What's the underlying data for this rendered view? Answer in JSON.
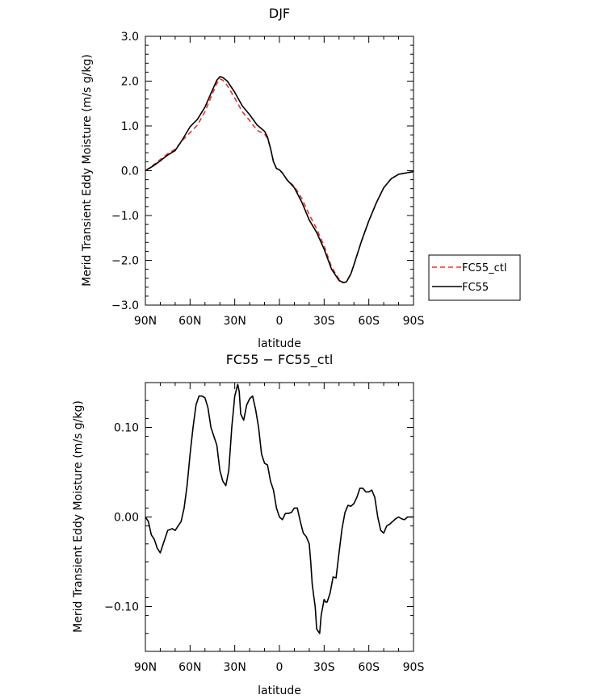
{
  "chart_data": [
    {
      "type": "line",
      "title": "DJF",
      "xlabel": "latitude",
      "ylabel": "Merid Transient Eddy Moisture (m/s g/kg)",
      "xlim": [
        90,
        -90
      ],
      "ylim": [
        -3.0,
        3.0
      ],
      "x_ticks": [
        {
          "value": 90,
          "label": "90N"
        },
        {
          "value": 60,
          "label": "60N"
        },
        {
          "value": 30,
          "label": "30N"
        },
        {
          "value": 0,
          "label": "0"
        },
        {
          "value": -30,
          "label": "30S"
        },
        {
          "value": -60,
          "label": "60S"
        },
        {
          "value": -90,
          "label": "90S"
        }
      ],
      "y_ticks": [
        {
          "value": 3.0,
          "label": "3.0"
        },
        {
          "value": 2.0,
          "label": "2.0"
        },
        {
          "value": 1.0,
          "label": "1.0"
        },
        {
          "value": 0.0,
          "label": "0.0"
        },
        {
          "value": -1.0,
          "label": "−1.0"
        },
        {
          "value": -2.0,
          "label": "−2.0"
        },
        {
          "value": -3.0,
          "label": "−3.0"
        }
      ],
      "legend": {
        "placement": "right",
        "entries": [
          {
            "label": "FC55_ctl",
            "color": "#e8312f",
            "dash": "dashed"
          },
          {
            "label": "FC55",
            "color": "#000000",
            "dash": "solid"
          }
        ]
      },
      "series": [
        {
          "name": "FC55",
          "color": "#000000",
          "style": "solid",
          "x": [
            90,
            85,
            80,
            75,
            70,
            65,
            60,
            55,
            50,
            45,
            42,
            40,
            38,
            35,
            30,
            25,
            20,
            15,
            10,
            8,
            6,
            4,
            2,
            0,
            -2,
            -5,
            -10,
            -15,
            -20,
            -25,
            -30,
            -35,
            -40,
            -43,
            -45,
            -48,
            -50,
            -55,
            -60,
            -65,
            -70,
            -75,
            -80,
            -85,
            -90
          ],
          "y": [
            0.0,
            0.1,
            0.22,
            0.35,
            0.45,
            0.7,
            0.98,
            1.15,
            1.42,
            1.8,
            2.02,
            2.1,
            2.08,
            2.0,
            1.75,
            1.45,
            1.25,
            1.02,
            0.88,
            0.75,
            0.5,
            0.2,
            0.05,
            0.02,
            -0.05,
            -0.2,
            -0.38,
            -0.7,
            -1.1,
            -1.38,
            -1.75,
            -2.2,
            -2.45,
            -2.5,
            -2.48,
            -2.3,
            -2.1,
            -1.58,
            -1.12,
            -0.72,
            -0.38,
            -0.18,
            -0.08,
            -0.05,
            -0.02
          ]
        },
        {
          "name": "FC55_ctl",
          "color": "#e8312f",
          "style": "dashed",
          "x": [
            90,
            85,
            80,
            75,
            70,
            65,
            60,
            55,
            50,
            45,
            42,
            40,
            38,
            35,
            30,
            25,
            20,
            15,
            10,
            8,
            6,
            4,
            2,
            0,
            -2,
            -5,
            -10,
            -15,
            -20,
            -25,
            -30,
            -35,
            -40,
            -43,
            -45,
            -48,
            -50,
            -55,
            -60,
            -65,
            -70,
            -75,
            -80,
            -85,
            -90
          ],
          "y": [
            0.0,
            0.12,
            0.25,
            0.38,
            0.48,
            0.68,
            0.85,
            1.02,
            1.32,
            1.72,
            1.95,
            2.05,
            2.02,
            1.9,
            1.62,
            1.32,
            1.12,
            0.9,
            0.82,
            0.72,
            0.5,
            0.2,
            0.05,
            0.02,
            -0.05,
            -0.2,
            -0.35,
            -0.62,
            -0.98,
            -1.3,
            -1.68,
            -2.15,
            -2.42,
            -2.5,
            -2.48,
            -2.3,
            -2.1,
            -1.58,
            -1.12,
            -0.72,
            -0.38,
            -0.18,
            -0.08,
            -0.05,
            -0.02
          ]
        }
      ]
    },
    {
      "type": "line",
      "title": "FC55 − FC55_ctl",
      "xlabel": "latitude",
      "ylabel": "Merid Transient Eddy Moisture (m/s g/kg)",
      "xlim": [
        90,
        -90
      ],
      "ylim": [
        -0.15,
        0.15
      ],
      "x_ticks": [
        {
          "value": 90,
          "label": "90N"
        },
        {
          "value": 60,
          "label": "60N"
        },
        {
          "value": 30,
          "label": "30N"
        },
        {
          "value": 0,
          "label": "0"
        },
        {
          "value": -30,
          "label": "30S"
        },
        {
          "value": -60,
          "label": "60S"
        },
        {
          "value": -90,
          "label": "90S"
        }
      ],
      "y_ticks": [
        {
          "value": 0.1,
          "label": "0.10"
        },
        {
          "value": 0.0,
          "label": "0.00"
        },
        {
          "value": -0.1,
          "label": "−0.10"
        }
      ],
      "series": [
        {
          "color": "#000000",
          "style": "solid",
          "x": [
            90,
            88,
            86,
            84,
            82,
            80,
            78,
            75,
            72,
            70,
            68,
            66,
            64,
            62,
            60,
            58,
            56,
            54,
            52,
            50,
            48,
            46,
            44,
            42,
            40,
            38,
            36,
            34,
            32,
            30,
            28,
            27,
            26,
            24,
            22,
            20,
            18,
            16,
            14,
            12,
            10,
            8,
            6,
            4,
            2,
            0,
            -2,
            -4,
            -6,
            -8,
            -10,
            -12,
            -14,
            -16,
            -18,
            -20,
            -21,
            -22,
            -23,
            -24,
            -25,
            -27,
            -28,
            -30,
            -31,
            -32,
            -34,
            -36,
            -38,
            -40,
            -42,
            -44,
            -46,
            -48,
            -50,
            -52,
            -54,
            -56,
            -58,
            -60,
            -62,
            -64,
            -66,
            -68,
            -70,
            -72,
            -74,
            -76,
            -78,
            -80,
            -82,
            -84,
            -86,
            -88,
            -90
          ],
          "y": [
            0.0,
            -0.005,
            -0.02,
            -0.025,
            -0.035,
            -0.04,
            -0.03,
            -0.015,
            -0.013,
            -0.015,
            -0.01,
            -0.005,
            0.01,
            0.035,
            0.07,
            0.1,
            0.125,
            0.135,
            0.135,
            0.133,
            0.122,
            0.1,
            0.09,
            0.08,
            0.052,
            0.04,
            0.035,
            0.052,
            0.1,
            0.135,
            0.148,
            0.14,
            0.115,
            0.108,
            0.125,
            0.132,
            0.135,
            0.12,
            0.1,
            0.07,
            0.06,
            0.058,
            0.04,
            0.03,
            0.01,
            0.0,
            -0.003,
            0.004,
            0.004,
            0.005,
            0.01,
            0.01,
            -0.005,
            -0.018,
            -0.022,
            -0.03,
            -0.05,
            -0.075,
            -0.088,
            -0.1,
            -0.125,
            -0.13,
            -0.11,
            -0.092,
            -0.095,
            -0.095,
            -0.085,
            -0.067,
            -0.068,
            -0.04,
            -0.013,
            0.005,
            0.013,
            0.012,
            0.015,
            0.022,
            0.032,
            0.032,
            0.028,
            0.028,
            0.03,
            0.022,
            0.0,
            -0.015,
            -0.018,
            -0.01,
            -0.008,
            -0.005,
            -0.002,
            0.0,
            -0.002,
            -0.003,
            0.0,
            0.0,
            0.0
          ]
        }
      ]
    }
  ]
}
